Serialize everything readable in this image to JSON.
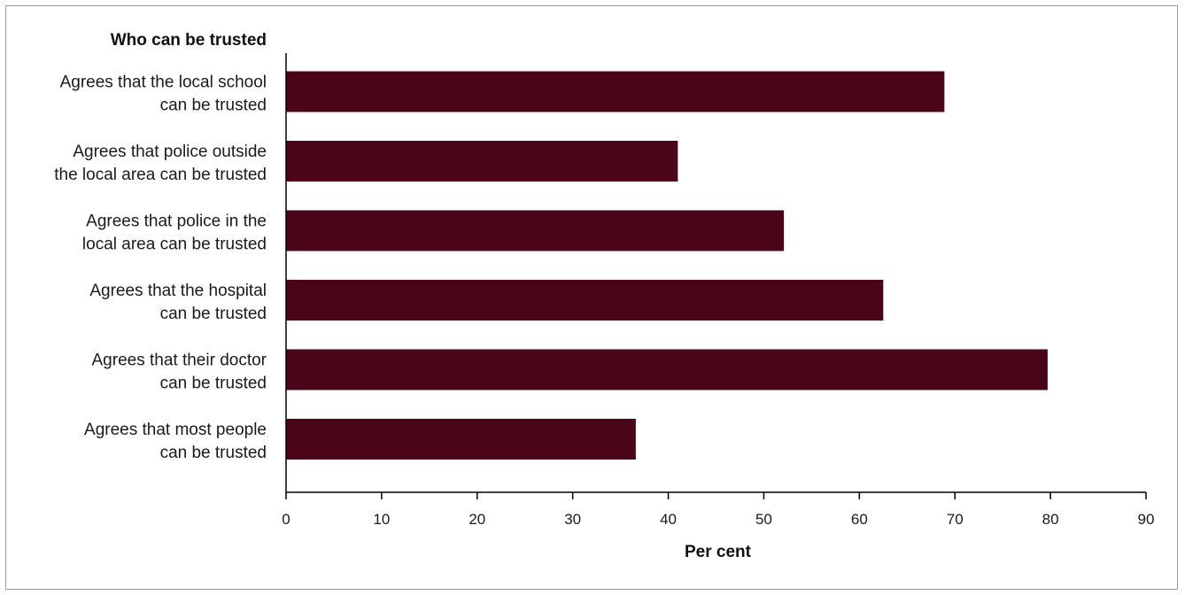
{
  "chart_data": {
    "type": "bar",
    "orientation": "horizontal",
    "title": "Who can be trusted",
    "xlabel": "Per cent",
    "ylabel": "",
    "xlim": [
      0,
      90
    ],
    "xticks": [
      0,
      10,
      20,
      30,
      40,
      50,
      60,
      70,
      80,
      90
    ],
    "grid": false,
    "categories": [
      [
        "Agrees that the local school",
        "can be trusted"
      ],
      [
        "Agrees that police outside",
        "the local area can be trusted"
      ],
      [
        "Agrees that police in the",
        "local area can be trusted"
      ],
      [
        "Agrees that the hospital",
        "can be trusted"
      ],
      [
        "Agrees that their doctor",
        "can be trusted"
      ],
      [
        "Agrees that most people",
        "can be trusted"
      ]
    ],
    "values": [
      68.9,
      41.0,
      52.1,
      62.5,
      79.7,
      36.6
    ],
    "bar_color": "#4a0519"
  }
}
